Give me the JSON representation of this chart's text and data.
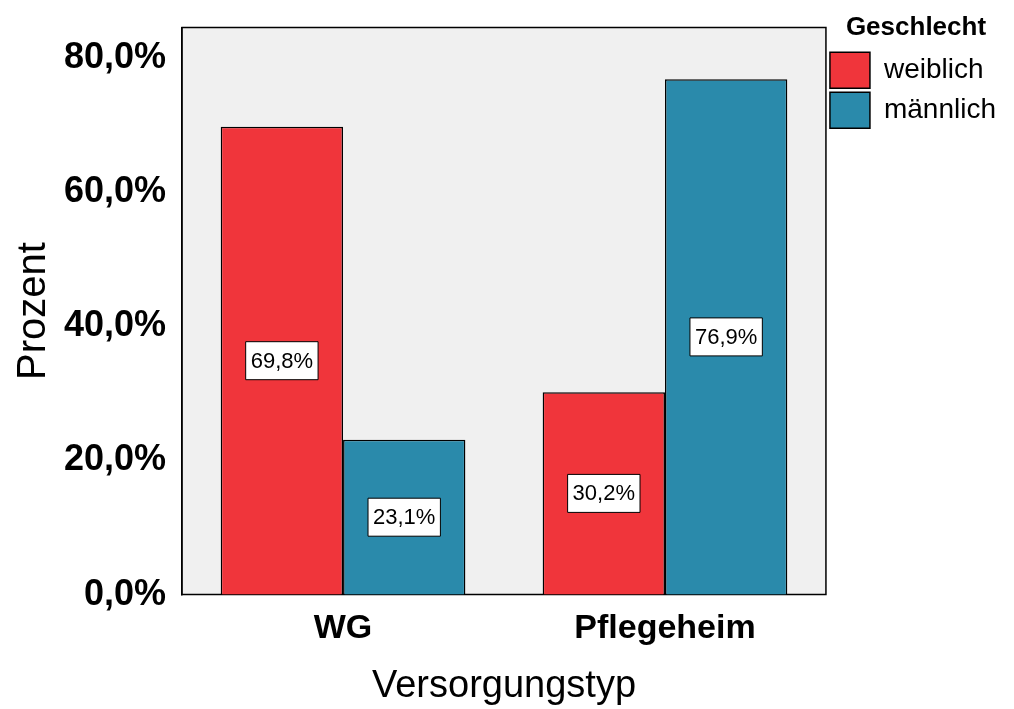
{
  "chart_data": {
    "type": "bar",
    "xlabel": "Versorgungstyp",
    "ylabel": "Prozent",
    "legend_title": "Geschlecht",
    "legend": "top right",
    "grid": false,
    "categories": [
      "WG",
      "Pflegeheim"
    ],
    "series": [
      {
        "name": "weiblich",
        "color": "#f0353b",
        "values": [
          69.8,
          30.2
        ],
        "value_labels": [
          "69,8%",
          "30,2%"
        ]
      },
      {
        "name": "männlich",
        "color": "#2a8aab",
        "values": [
          23.1,
          76.9
        ],
        "value_labels": [
          "23,1%",
          "76,9%"
        ]
      }
    ],
    "ylim": [
      0,
      84.6
    ],
    "yticks": [
      {
        "value": 0,
        "label": "0,0%"
      },
      {
        "value": 20,
        "label": "20,0%"
      },
      {
        "value": 40,
        "label": "40,0%"
      },
      {
        "value": 60,
        "label": "60,0%"
      },
      {
        "value": 80,
        "label": "80,0%"
      }
    ]
  }
}
